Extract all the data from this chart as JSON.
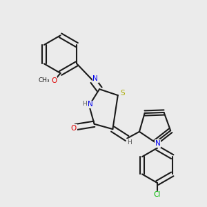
{
  "bg_color": "#ebebeb",
  "bond_color": "#1a1a1a",
  "n_color": "#0000ee",
  "o_color": "#dd0000",
  "s_color": "#aaaa00",
  "cl_color": "#00bb00",
  "h_color": "#555555",
  "lw": 1.5,
  "dbl_off": 0.013,
  "xlim": [
    0.0,
    1.0
  ],
  "ylim": [
    0.0,
    1.0
  ]
}
